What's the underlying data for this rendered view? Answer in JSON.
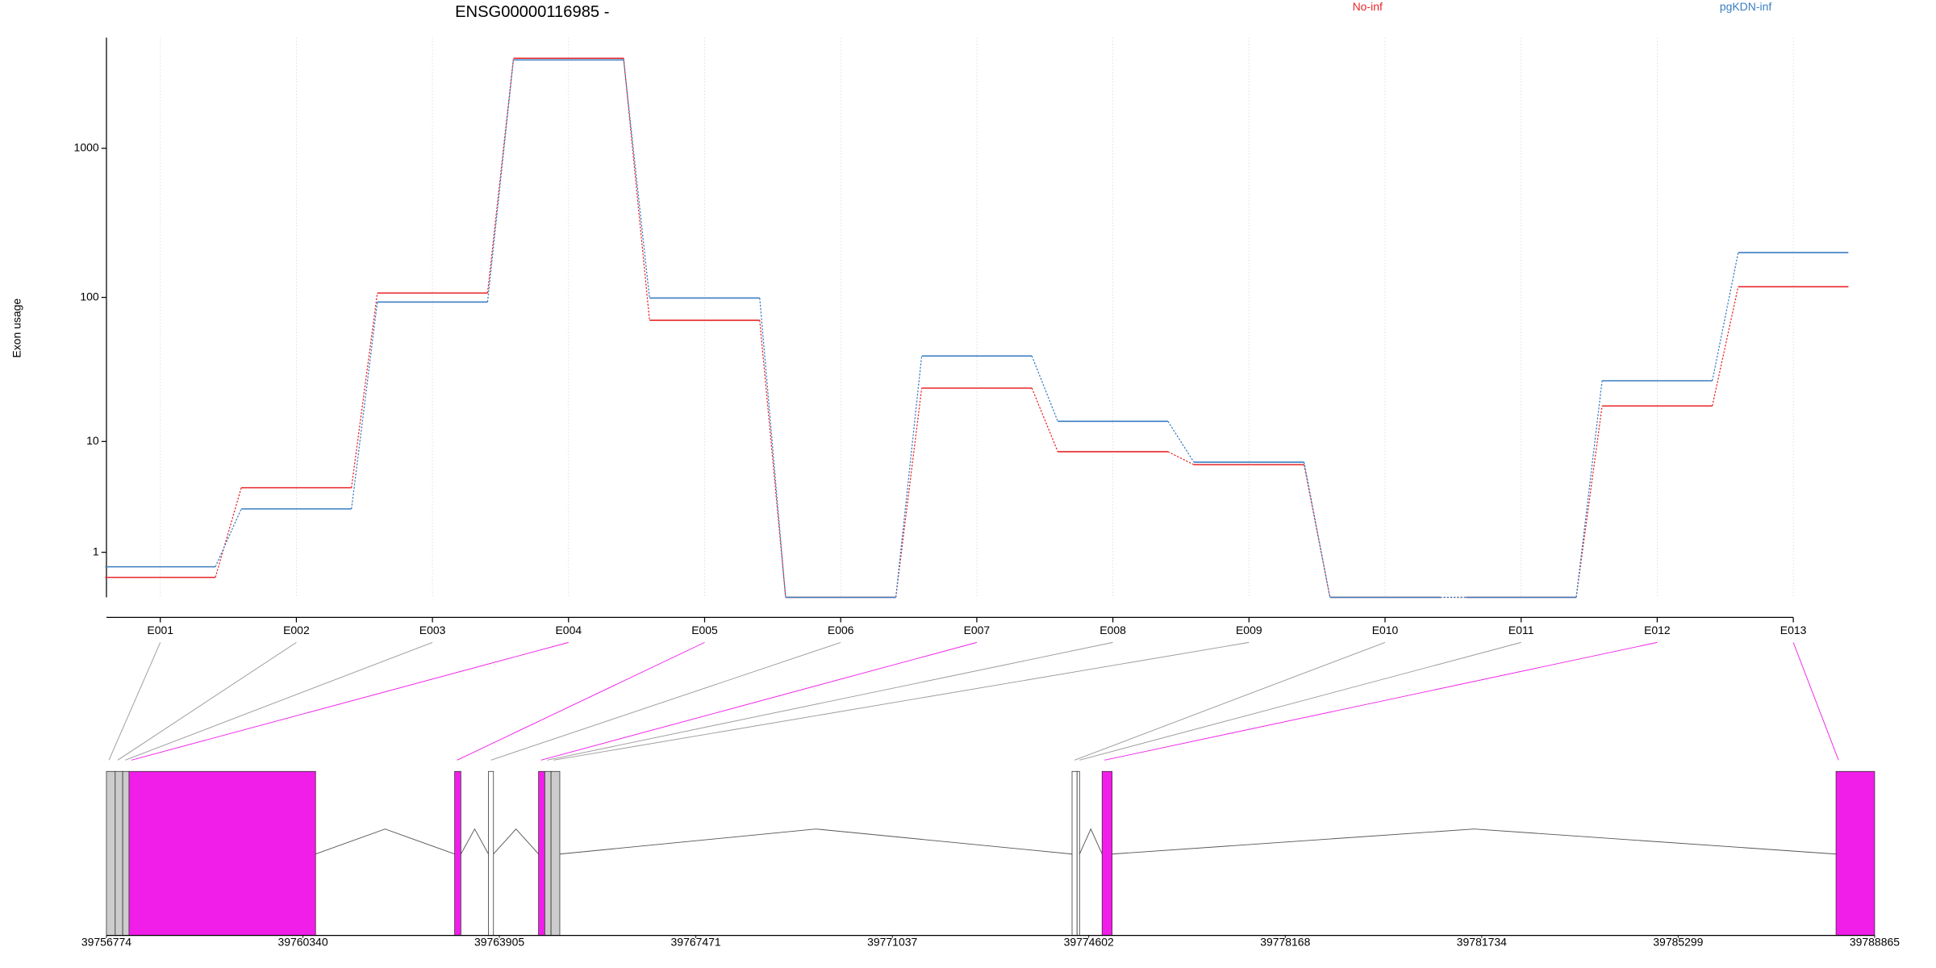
{
  "chart_data": [
    {
      "type": "line",
      "title": "ENSG00000116985 -",
      "y_label": "Exon usage",
      "categories": [
        "E001",
        "E002",
        "E003",
        "E004",
        "E005",
        "E006",
        "E007",
        "E008",
        "E009",
        "E010",
        "E011",
        "E012",
        "E013"
      ],
      "series": [
        {
          "name": "No-inf",
          "color": "#e8262a",
          "values": [
            0.36,
            4.4,
            107,
            4000,
            70,
            0,
            24,
            8.4,
            6.7,
            0,
            0,
            18,
            118
          ]
        },
        {
          "name": "pgKDN-inf",
          "color": "#3a7dc1",
          "values": [
            0.6,
            2.9,
            93,
            3900,
            99,
            0,
            40,
            14,
            7,
            0,
            0,
            27,
            200
          ]
        }
      ],
      "yscale": "log1p",
      "ylim": [
        0,
        5500
      ],
      "yticks": [
        1,
        10,
        100,
        1000
      ],
      "grid": true,
      "legend": "top"
    },
    {
      "type": "gene-model",
      "xlim": [
        39756774,
        39788865
      ],
      "xticks": [
        39756774,
        39760340,
        39763905,
        39767471,
        39771037,
        39774602,
        39778168,
        39781734,
        39785299,
        39788865
      ],
      "exons": [
        {
          "start": 39756774,
          "end": 39756933,
          "color": "#cccccc"
        },
        {
          "start": 39756933,
          "end": 39757069,
          "color": "#cccccc"
        },
        {
          "start": 39757069,
          "end": 39757183,
          "color": "#cccccc"
        },
        {
          "start": 39757183,
          "end": 39760570,
          "color": "#f01ee8"
        },
        {
          "start": 39763093,
          "end": 39763207,
          "color": "#f01ee8"
        },
        {
          "start": 39763707,
          "end": 39763798,
          "color": "#ffffff"
        },
        {
          "start": 39764616,
          "end": 39764730,
          "color": "#f01ee8"
        },
        {
          "start": 39764730,
          "end": 39764843,
          "color": "#cccccc"
        },
        {
          "start": 39764843,
          "end": 39765002,
          "color": "#cccccc"
        },
        {
          "start": 39774299,
          "end": 39774390,
          "color": "#ffffff"
        },
        {
          "start": 39774390,
          "end": 39774435,
          "color": "#ffffff"
        },
        {
          "start": 39774844,
          "end": 39775026,
          "color": "#f01ee8"
        },
        {
          "start": 39788164,
          "end": 39788865,
          "color": "#f01ee8"
        }
      ]
    }
  ]
}
